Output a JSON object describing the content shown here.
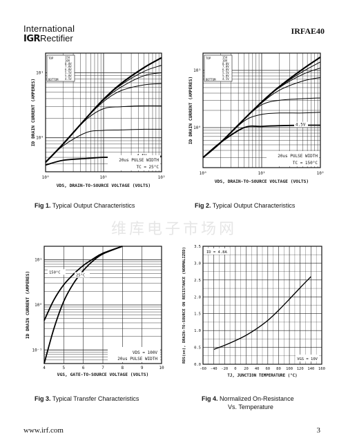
{
  "header": {
    "brand_line1": "International",
    "brand_logo": "IGR",
    "brand_line2": "Rectifier",
    "part_number": "IRFAE40"
  },
  "watermark": "维库电子市场网",
  "footer": {
    "url": "www.irf.com",
    "page": "3"
  },
  "figures": [
    {
      "fig": "Fig 1.",
      "caption": "Typical Output Characteristics",
      "ylabel": "ID  DRAIN CURRENT (AMPERES)",
      "xlabel": "VDS, DRAIN-TO-SOURCE VOLTAGE (VOLTS)",
      "note1": "20us PULSE WIDTH",
      "note2": "TC = 25°C",
      "curve_label": "4.5V",
      "legend_vgs": [
        "15V",
        "10V",
        "8.0V",
        "7.0V",
        "6.0V",
        "5.5V",
        "5.0V",
        "4.5V"
      ],
      "legend_top": "TOP",
      "legend_bottom": "BOTTOM",
      "xticks": [
        "10⁰",
        "10¹",
        "10²"
      ],
      "yticks": [
        "10⁰",
        "10¹"
      ]
    },
    {
      "fig": "Fig 2.",
      "caption": "Typical Output Characteristics",
      "ylabel": "ID  DRAIN CURRENT (AMPERES)",
      "xlabel": "VDS, DRAIN-TO-SOURCE VOLTAGE (VOLTS)",
      "note1": "20us PULSE WIDTH",
      "note2": "TC = 150°C",
      "curve_label": "4.5V",
      "legend_vgs": [
        "15V",
        "10V",
        "8.0V",
        "7.0V",
        "6.0V",
        "5.5V",
        "5.0V",
        "4.5V"
      ],
      "legend_top": "TOP",
      "legend_bottom": "BOTTOM",
      "xticks": [
        "10⁰",
        "10¹",
        "10²"
      ],
      "yticks": [
        "10⁰",
        "10¹"
      ]
    },
    {
      "fig": "Fig 3.",
      "caption": "Typical Transfer Characteristics",
      "ylabel": "ID  DRAIN CURRENT (AMPERES)",
      "xlabel": "VGS, GATE-TO-SOURCE VOLTAGE (VOLTS)",
      "note1": "VDS = 100V",
      "note2": "20us PULSE WIDTH",
      "curve1": "150°C",
      "curve2": "25°C",
      "xticks": [
        "4",
        "5",
        "6",
        "7",
        "8",
        "9",
        "10"
      ],
      "yticks": [
        "10⁻¹",
        "10⁰",
        "10¹"
      ]
    },
    {
      "fig": "Fig 4.",
      "caption": "Normalized On-Resistance",
      "caption2": "Vs. Temperature",
      "ylabel": "RDS(on), DRAIN-TO-SOURCE ON RESISTANCE (NORMALIZED)",
      "xlabel": "TJ, JUNCTION TEMPERATURE (°C)",
      "note1": "ID = 4.8A",
      "note2": "VGS = 10V",
      "xticks": [
        "-60",
        "-40",
        "-20",
        "0",
        "20",
        "40",
        "60",
        "80",
        "100",
        "120",
        "140",
        "160"
      ],
      "yticks": [
        "0.0",
        "0.5",
        "1.0",
        "1.5",
        "2.0",
        "2.5",
        "3.0",
        "3.5"
      ]
    }
  ],
  "chart_data": [
    {
      "type": "line",
      "title": "Typical Output Characteristics",
      "x_scale": "log",
      "y_scale": "log",
      "xlim": [
        1,
        100
      ],
      "ylim": [
        0.3,
        20
      ],
      "xlabel": "VDS, Drain-to-Source Voltage (Volts)",
      "ylabel": "ID Drain Current (Amperes)",
      "series": [
        {
          "name": "15V",
          "x": [
            1,
            2,
            5,
            10,
            20,
            50,
            100
          ],
          "y": [
            0.42,
            0.8,
            2.0,
            3.9,
            6.8,
            12,
            17
          ]
        },
        {
          "name": "10V",
          "x": [
            1,
            2,
            5,
            10,
            20,
            50,
            100
          ],
          "y": [
            0.42,
            0.8,
            2.0,
            3.9,
            6.5,
            10.5,
            13
          ]
        },
        {
          "name": "8.0V",
          "x": [
            1,
            2,
            5,
            10,
            20,
            50,
            100
          ],
          "y": [
            0.42,
            0.8,
            2.0,
            3.8,
            6.0,
            9.0,
            10
          ]
        },
        {
          "name": "7.0V",
          "x": [
            1,
            2,
            5,
            10,
            20,
            50,
            100
          ],
          "y": [
            0.42,
            0.8,
            2.0,
            3.6,
            5.3,
            6.5,
            6.8
          ]
        },
        {
          "name": "6.0V",
          "x": [
            1,
            2,
            5,
            10,
            20,
            50,
            100
          ],
          "y": [
            0.42,
            0.8,
            1.9,
            2.8,
            3.0,
            3.1,
            3.1
          ]
        },
        {
          "name": "5.0V",
          "x": [
            1,
            2,
            5,
            10,
            20,
            50,
            100
          ],
          "y": [
            0.42,
            0.75,
            1.2,
            1.3,
            1.32,
            1.35,
            1.35
          ]
        },
        {
          "name": "4.5V",
          "x": [
            1,
            2,
            5,
            10,
            20,
            50,
            100
          ],
          "y": [
            0.38,
            0.45,
            0.48,
            0.5,
            0.5,
            0.5,
            0.52
          ]
        }
      ]
    },
    {
      "type": "line",
      "title": "Typical Output Characteristics",
      "x_scale": "log",
      "y_scale": "log",
      "xlim": [
        1,
        100
      ],
      "ylim": [
        0.2,
        20
      ],
      "xlabel": "VDS, Drain-to-Source Voltage (Volts)",
      "ylabel": "ID Drain Current (Amperes)",
      "series": [
        {
          "name": "15V",
          "x": [
            1,
            2,
            5,
            10,
            20,
            50,
            100
          ],
          "y": [
            0.3,
            0.55,
            1.4,
            2.8,
            5.2,
            10.5,
            17
          ]
        },
        {
          "name": "10V",
          "x": [
            1,
            2,
            5,
            10,
            20,
            50,
            100
          ],
          "y": [
            0.3,
            0.55,
            1.4,
            2.8,
            5.1,
            9.5,
            14
          ]
        },
        {
          "name": "8.0V",
          "x": [
            1,
            2,
            5,
            10,
            20,
            50,
            100
          ],
          "y": [
            0.3,
            0.55,
            1.4,
            2.8,
            5.0,
            8.5,
            11
          ]
        },
        {
          "name": "7.0V",
          "x": [
            1,
            2,
            5,
            10,
            20,
            50,
            100
          ],
          "y": [
            0.3,
            0.55,
            1.4,
            2.7,
            4.5,
            6.5,
            7.5
          ]
        },
        {
          "name": "6.0V",
          "x": [
            1,
            2,
            5,
            10,
            20,
            50,
            100
          ],
          "y": [
            0.3,
            0.55,
            1.4,
            2.5,
            3.0,
            3.2,
            3.3
          ]
        },
        {
          "name": "5.0V",
          "x": [
            1,
            2,
            5,
            10,
            20,
            50,
            100
          ],
          "y": [
            0.3,
            0.55,
            1.3,
            1.7,
            1.8,
            1.8,
            1.85
          ]
        },
        {
          "name": "4.5V",
          "x": [
            1,
            2,
            5,
            10,
            20,
            50,
            100
          ],
          "y": [
            0.3,
            0.55,
            1.0,
            1.05,
            1.08,
            1.1,
            1.1
          ]
        }
      ]
    },
    {
      "type": "line",
      "title": "Typical Transfer Characteristics",
      "y_scale": "log",
      "xlim": [
        4,
        10
      ],
      "ylim": [
        0.05,
        20
      ],
      "xlabel": "VGS, Gate-to-Source Voltage (Volts)",
      "ylabel": "ID Drain Current (Amperes)",
      "series": [
        {
          "name": "150°C",
          "x": [
            4.0,
            4.5,
            5,
            5.5,
            6,
            6.5,
            7,
            8
          ],
          "y": [
            0.45,
            1.3,
            2.8,
            4.8,
            7.5,
            10.5,
            14,
            22
          ]
        },
        {
          "name": "25°C",
          "x": [
            4.0,
            4.5,
            5,
            5.5,
            6,
            6.5,
            7,
            8
          ],
          "y": [
            0.05,
            0.3,
            1.2,
            3.0,
            5.8,
            9.5,
            13.5,
            22
          ]
        }
      ]
    },
    {
      "type": "line",
      "title": "Normalized On-Resistance Vs. Temperature",
      "xlim": [
        -60,
        160
      ],
      "ylim": [
        0,
        3.5
      ],
      "xlabel": "TJ, Junction Temperature (°C)",
      "ylabel": "RDS(on), Drain-to-Source On Resistance (Normalized)",
      "series": [
        {
          "x": [
            -40,
            -20,
            0,
            20,
            40,
            60,
            80,
            100,
            120,
            140
          ],
          "y": [
            0.44,
            0.56,
            0.7,
            0.86,
            1.06,
            1.3,
            1.6,
            1.93,
            2.27,
            2.6
          ]
        }
      ]
    }
  ]
}
